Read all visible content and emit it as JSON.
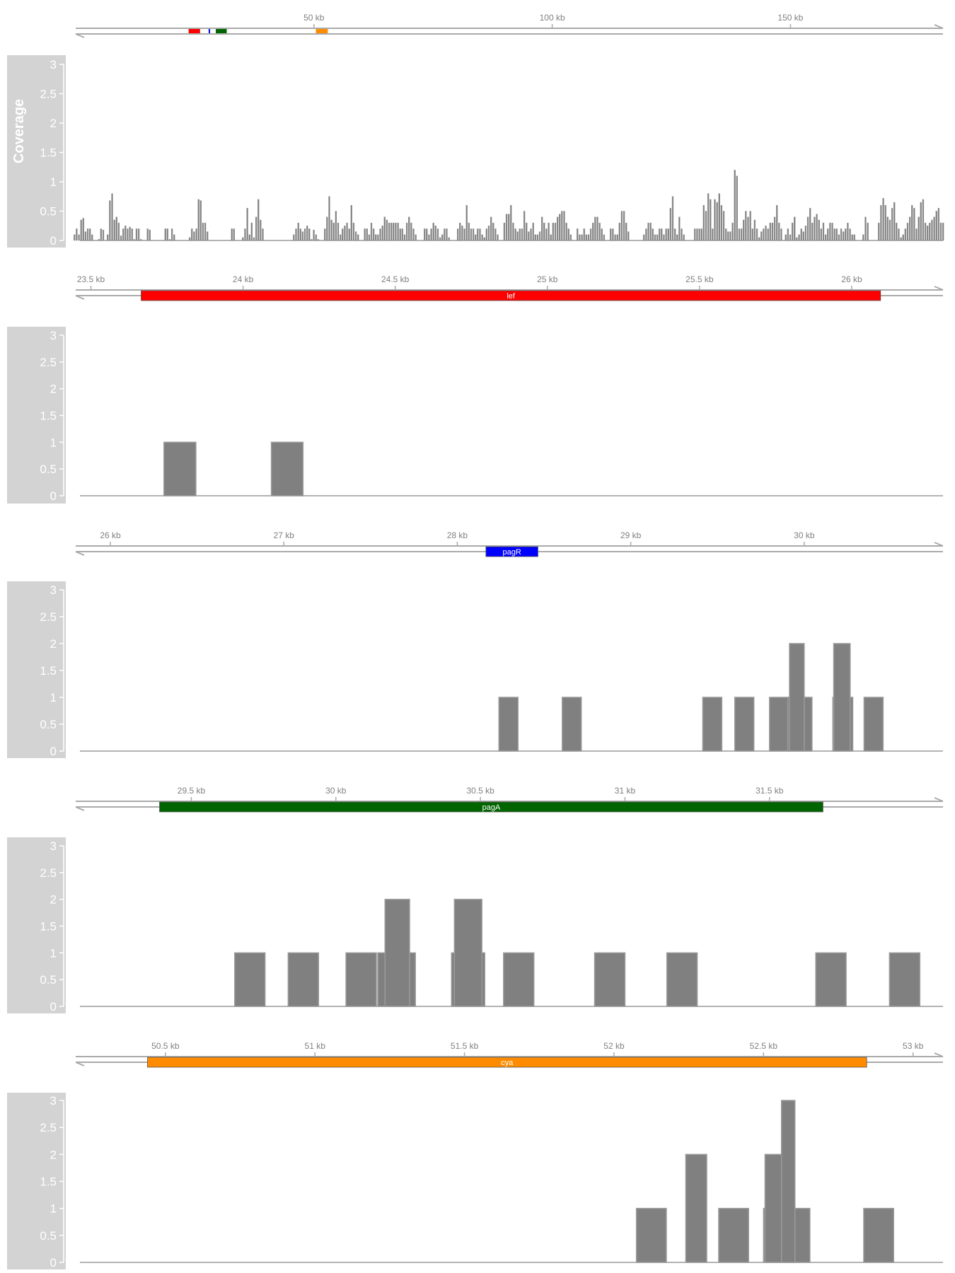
{
  "colors": {
    "axis_line": "#aaaaaa",
    "axis_text": "#808080",
    "coverage_fill": "#808080",
    "coverage_edge": "#9a9a9a",
    "panel_bg": "#d3d3d3",
    "panel_text": "#ffffff"
  },
  "chart_data": [
    {
      "type": "bar",
      "panel": "overview",
      "ylabel": "Coverage",
      "ylim": [
        0,
        3
      ],
      "y_ticks": [
        "0",
        "0.5",
        "1",
        "1.5",
        "2",
        "2.5",
        "3"
      ],
      "x_unit": "kb",
      "xlim": [
        0,
        182
      ],
      "x_ticks": [
        {
          "value": 50,
          "label": "50 kb"
        },
        {
          "value": 100,
          "label": "100 kb"
        },
        {
          "value": 150,
          "label": "150 kb"
        }
      ],
      "gene_marks": [
        {
          "start": 23.7,
          "end": 26.1,
          "color": "#ff0000"
        },
        {
          "start": 27.9,
          "end": 28.2,
          "color": "#0000ff"
        },
        {
          "start": 29.4,
          "end": 31.7,
          "color": "#006400"
        },
        {
          "start": 50.4,
          "end": 52.9,
          "color": "#ff8c00"
        }
      ],
      "values": [
        0.1,
        0.2,
        0.1,
        0.35,
        0.38,
        0.15,
        0.2,
        0.2,
        0.1,
        0,
        0,
        0.02,
        0.2,
        0.18,
        0,
        0.1,
        0.68,
        0.8,
        0.35,
        0.4,
        0.3,
        0.08,
        0.2,
        0.25,
        0.2,
        0.23,
        0.2,
        0.02,
        0.2,
        0.2,
        0.02,
        0,
        0,
        0.2,
        0.18,
        0,
        0,
        0,
        0,
        0,
        0,
        0.2,
        0.2,
        0.02,
        0.2,
        0.1,
        0,
        0,
        0,
        0,
        0,
        0,
        0.05,
        0.2,
        0.15,
        0.2,
        0.7,
        0.68,
        0.3,
        0.3,
        0.15,
        0,
        0,
        0,
        0,
        0,
        0,
        0,
        0,
        0,
        0,
        0.2,
        0.2,
        0,
        0,
        0,
        0.05,
        0.2,
        0.55,
        0.1,
        0.3,
        0.05,
        0.4,
        0.7,
        0.35,
        0.2,
        0,
        0,
        0,
        0,
        0,
        0,
        0,
        0,
        0,
        0,
        0,
        0,
        0,
        0.1,
        0.2,
        0.3,
        0.2,
        0.15,
        0.2,
        0.25,
        0.2,
        0.02,
        0.18,
        0.1,
        0.02,
        0,
        0,
        0.2,
        0.4,
        0.75,
        0.35,
        0.3,
        0.5,
        0.3,
        0.1,
        0.2,
        0.25,
        0.3,
        0.2,
        0.6,
        0.3,
        0.15,
        0.1,
        0,
        0,
        0.2,
        0.2,
        0.1,
        0.3,
        0.2,
        0.1,
        0.1,
        0.2,
        0.25,
        0.4,
        0.35,
        0.3,
        0.3,
        0.3,
        0.3,
        0.3,
        0.2,
        0.2,
        0.1,
        0.3,
        0.4,
        0.3,
        0.2,
        0.1,
        0,
        0,
        0,
        0.2,
        0.2,
        0.1,
        0.2,
        0.3,
        0.25,
        0.2,
        0.05,
        0.1,
        0.2,
        0.2,
        0.05,
        0,
        0,
        0,
        0.2,
        0.3,
        0.25,
        0.2,
        0.6,
        0.3,
        0.2,
        0.2,
        0.1,
        0.2,
        0.2,
        0.1,
        0.05,
        0.2,
        0.25,
        0.4,
        0.3,
        0.2,
        0.1,
        0,
        0,
        0.3,
        0.45,
        0.45,
        0.6,
        0.3,
        0.2,
        0.15,
        0.2,
        0.2,
        0.5,
        0.3,
        0.15,
        0.2,
        0.3,
        0.1,
        0.1,
        0.15,
        0.4,
        0.3,
        0.2,
        0.3,
        0.1,
        0.3,
        0.3,
        0.4,
        0.45,
        0.5,
        0.5,
        0.3,
        0.2,
        0.1,
        0,
        0,
        0.2,
        0.1,
        0.1,
        0.2,
        0.1,
        0.1,
        0.2,
        0.3,
        0.4,
        0.4,
        0.3,
        0.2,
        0.1,
        0,
        0,
        0.2,
        0.2,
        0.1,
        0.1,
        0.3,
        0.5,
        0.5,
        0.3,
        0.15,
        0,
        0,
        0,
        0,
        0,
        0,
        0.1,
        0.2,
        0.3,
        0.3,
        0.2,
        0.1,
        0.1,
        0.2,
        0.2,
        0.1,
        0.2,
        0.2,
        0.55,
        0.75,
        0.2,
        0.1,
        0.4,
        0.2,
        0.1,
        0,
        0,
        0,
        0,
        0.2,
        0.2,
        0.2,
        0.2,
        0.6,
        0.5,
        0.8,
        0.7,
        0.2,
        0.7,
        0.65,
        0.8,
        0.6,
        0.5,
        0.2,
        0.15,
        0.15,
        0.3,
        1.2,
        1.1,
        0.2,
        0.2,
        0.35,
        0.5,
        0.4,
        0.5,
        0.2,
        0.35,
        0.2,
        0.05,
        0.15,
        0.2,
        0.25,
        0.2,
        0.3,
        0.3,
        0.4,
        0.6,
        0.3,
        0.2,
        0,
        0.1,
        0.2,
        0.1,
        0.3,
        0.4,
        0.05,
        0.1,
        0.2,
        0.15,
        0.25,
        0.4,
        0.55,
        0.3,
        0.4,
        0.45,
        0.35,
        0.2,
        0.3,
        0.1,
        0.2,
        0.3,
        0.3,
        0.2,
        0.2,
        0.1,
        0.2,
        0.15,
        0.2,
        0.3,
        0.2,
        0.1,
        0.1,
        0,
        0,
        0,
        0.1,
        0.4,
        0.3,
        0,
        0,
        0,
        0,
        0.3,
        0.6,
        0.72,
        0.6,
        0.4,
        0.35,
        0.55,
        0.65,
        0.3,
        0.2,
        0.05,
        0.1,
        0.2,
        0.3,
        0.4,
        0.6,
        0.55,
        0.2,
        0.4,
        0.65,
        0.7,
        0.3,
        0.25,
        0.3,
        0.35,
        0.4,
        0.5,
        0.55,
        0.3,
        0.3
      ]
    },
    {
      "type": "bar",
      "panel": "lef",
      "ylim": [
        0,
        3
      ],
      "y_ticks": [
        "0",
        "0.5",
        "1",
        "1.5",
        "2",
        "2.5",
        "3"
      ],
      "x_unit": "kb",
      "xlim": [
        23.45,
        26.3
      ],
      "x_ticks": [
        {
          "value": 23.5,
          "label": "23.5 kb"
        },
        {
          "value": 24,
          "label": "24 kb"
        },
        {
          "value": 24.5,
          "label": "24.5 kb"
        },
        {
          "value": 25,
          "label": "25 kb"
        },
        {
          "value": 25.5,
          "label": "25.5 kb"
        },
        {
          "value": 26,
          "label": "26 kb"
        }
      ],
      "gene": {
        "name": "lef",
        "start": 23.665,
        "end": 26.095,
        "color": "#ff0000"
      },
      "reads": [
        {
          "start": 23.74,
          "end": 23.845,
          "depth": 1
        },
        {
          "start": 24.093,
          "end": 24.197,
          "depth": 1
        }
      ]
    },
    {
      "type": "bar",
      "panel": "pagR",
      "ylim": [
        0,
        3
      ],
      "y_ticks": [
        "0",
        "0.5",
        "1",
        "1.5",
        "2",
        "2.5",
        "3"
      ],
      "x_unit": "kb",
      "xlim": [
        25.8,
        30.8
      ],
      "x_ticks": [
        {
          "value": 26,
          "label": "26 kb"
        },
        {
          "value": 27,
          "label": "27 kb"
        },
        {
          "value": 28,
          "label": "28 kb"
        },
        {
          "value": 29,
          "label": "29 kb"
        },
        {
          "value": 30,
          "label": "30 kb"
        }
      ],
      "gene": {
        "name": "pagR",
        "start": 28.165,
        "end": 28.465,
        "color": "#0000ff"
      },
      "reads": [
        {
          "start": 28.24,
          "end": 28.35,
          "depth": 1
        },
        {
          "start": 28.605,
          "end": 28.715,
          "depth": 1
        },
        {
          "start": 29.415,
          "end": 29.525,
          "depth": 1
        },
        {
          "start": 29.6,
          "end": 29.71,
          "depth": 1
        },
        {
          "start": 29.8,
          "end": 29.91,
          "depth": 1
        },
        {
          "start": 29.905,
          "end": 30.045,
          "depth": 1
        },
        {
          "start": 29.915,
          "end": 30.0,
          "depth": 2
        },
        {
          "start": 30.165,
          "end": 30.28,
          "depth": 1
        },
        {
          "start": 30.17,
          "end": 30.265,
          "depth": 2
        },
        {
          "start": 30.345,
          "end": 30.455,
          "depth": 1
        }
      ]
    },
    {
      "type": "bar",
      "panel": "pagA",
      "ylim": [
        0,
        3
      ],
      "y_ticks": [
        "0",
        "0.5",
        "1",
        "1.5",
        "2",
        "2.5",
        "3"
      ],
      "x_unit": "kb",
      "xlim": [
        29.1,
        32.1
      ],
      "x_ticks": [
        {
          "value": 29.5,
          "label": "29.5 kb"
        },
        {
          "value": 30,
          "label": "30 kb"
        },
        {
          "value": 30.5,
          "label": "30.5 kb"
        },
        {
          "value": 31,
          "label": "31 kb"
        },
        {
          "value": 31.5,
          "label": "31.5 kb"
        }
      ],
      "gene": {
        "name": "pagA",
        "start": 29.39,
        "end": 31.685,
        "color": "#006400"
      },
      "reads": [
        {
          "start": 29.65,
          "end": 29.755,
          "depth": 1
        },
        {
          "start": 29.835,
          "end": 29.94,
          "depth": 1
        },
        {
          "start": 30.035,
          "end": 30.14,
          "depth": 1
        },
        {
          "start": 30.145,
          "end": 30.275,
          "depth": 1
        },
        {
          "start": 30.17,
          "end": 30.255,
          "depth": 2
        },
        {
          "start": 30.4,
          "end": 30.515,
          "depth": 1
        },
        {
          "start": 30.41,
          "end": 30.505,
          "depth": 2
        },
        {
          "start": 30.58,
          "end": 30.685,
          "depth": 1
        },
        {
          "start": 30.895,
          "end": 31.0,
          "depth": 1
        },
        {
          "start": 31.145,
          "end": 31.25,
          "depth": 1
        },
        {
          "start": 31.66,
          "end": 31.765,
          "depth": 1
        },
        {
          "start": 31.915,
          "end": 32.02,
          "depth": 1
        }
      ]
    },
    {
      "type": "bar",
      "panel": "cya",
      "ylim": [
        0,
        3
      ],
      "y_ticks": [
        "0",
        "0.5",
        "1",
        "1.5",
        "2",
        "2.5",
        "3"
      ],
      "x_unit": "kb",
      "xlim": [
        50.2,
        53.1
      ],
      "x_ticks": [
        {
          "value": 50.5,
          "label": "50.5 kb"
        },
        {
          "value": 51,
          "label": "51 kb"
        },
        {
          "value": 51.5,
          "label": "51.5 kb"
        },
        {
          "value": 52,
          "label": "52 kb"
        },
        {
          "value": 52.5,
          "label": "52.5 kb"
        },
        {
          "value": 53,
          "label": "53 kb"
        }
      ],
      "gene": {
        "name": "cya",
        "start": 50.44,
        "end": 52.845,
        "color": "#ff8c00"
      },
      "reads": [
        {
          "start": 52.075,
          "end": 52.175,
          "depth": 1
        },
        {
          "start": 52.24,
          "end": 52.31,
          "depth": 2
        },
        {
          "start": 52.35,
          "end": 52.45,
          "depth": 1
        },
        {
          "start": 52.5,
          "end": 52.655,
          "depth": 1
        },
        {
          "start": 52.505,
          "end": 52.6,
          "depth": 2
        },
        {
          "start": 52.56,
          "end": 52.605,
          "depth": 3
        },
        {
          "start": 52.835,
          "end": 52.935,
          "depth": 1
        }
      ]
    }
  ]
}
